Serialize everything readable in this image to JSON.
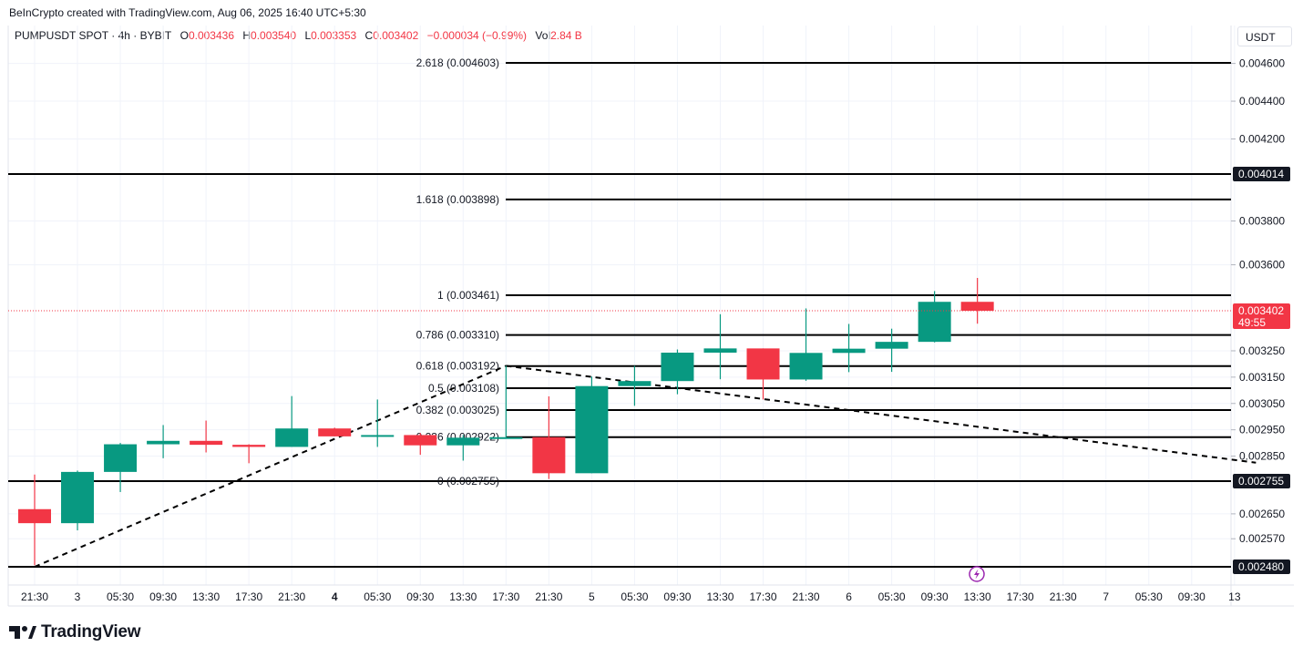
{
  "credit": "BeInCrypto created with TradingView.com, Aug 06, 2025 16:40 UTC+5:30",
  "legend": {
    "symbol": "PUMPUSDT SPOT · 4h · BYBIT",
    "open_label": "O",
    "open": "0.003436",
    "high_label": "H",
    "high": "0.003540",
    "low_label": "L",
    "low": "0.003353",
    "close_label": "C",
    "close": "0.003402",
    "change": "−0.000034 (−0.99%)",
    "vol_label": "Vol",
    "vol": "2.84 B"
  },
  "currency": "USDT",
  "brand": "TradingView",
  "colors": {
    "up": "#089981",
    "down": "#f23645",
    "line": "#000000",
    "grid": "#f0f3fa"
  },
  "chart_data": {
    "type": "candlestick",
    "y_axis_ticks": [
      "0.004600",
      "0.004400",
      "0.004200",
      "0.003800",
      "0.003600",
      "0.003250",
      "0.003150",
      "0.003050",
      "0.002950",
      "0.002850",
      "0.002650",
      "0.002570"
    ],
    "x_axis_ticks": [
      "21:30",
      "3",
      "05:30",
      "09:30",
      "13:30",
      "17:30",
      "21:30",
      "4",
      "05:30",
      "09:30",
      "13:30",
      "17:30",
      "21:30",
      "5",
      "05:30",
      "09:30",
      "13:30",
      "17:30",
      "21:30",
      "6",
      "05:30",
      "09:30",
      "13:30",
      "17:30",
      "21:30",
      "7",
      "05:30",
      "09:30",
      "13"
    ],
    "bold_x_ticks": [
      "4"
    ],
    "candles": [
      {
        "o": 0.002665,
        "h": 0.00278,
        "l": 0.002485,
        "c": 0.00262
      },
      {
        "o": 0.00262,
        "h": 0.002795,
        "l": 0.002597,
        "c": 0.00279
      },
      {
        "o": 0.00279,
        "h": 0.0029,
        "l": 0.00272,
        "c": 0.002895
      },
      {
        "o": 0.002895,
        "h": 0.002968,
        "l": 0.002842,
        "c": 0.002908
      },
      {
        "o": 0.002908,
        "h": 0.002985,
        "l": 0.002864,
        "c": 0.002893
      },
      {
        "o": 0.002893,
        "h": 0.002895,
        "l": 0.002823,
        "c": 0.002885
      },
      {
        "o": 0.002885,
        "h": 0.003078,
        "l": 0.002885,
        "c": 0.002955
      },
      {
        "o": 0.002955,
        "h": 0.002958,
        "l": 0.002925,
        "c": 0.002925
      },
      {
        "o": 0.002925,
        "h": 0.003065,
        "l": 0.002885,
        "c": 0.00293
      },
      {
        "o": 0.00293,
        "h": 0.002938,
        "l": 0.002855,
        "c": 0.002891
      },
      {
        "o": 0.002891,
        "h": 0.00293,
        "l": 0.002833,
        "c": 0.00292
      },
      {
        "o": 0.00292,
        "h": 0.003193,
        "l": 0.00292,
        "c": 0.002922
      },
      {
        "o": 0.002922,
        "h": 0.003077,
        "l": 0.002763,
        "c": 0.002785
      },
      {
        "o": 0.002785,
        "h": 0.003152,
        "l": 0.002785,
        "c": 0.003116
      },
      {
        "o": 0.003116,
        "h": 0.003193,
        "l": 0.003041,
        "c": 0.003135
      },
      {
        "o": 0.003135,
        "h": 0.003255,
        "l": 0.003085,
        "c": 0.003243
      },
      {
        "o": 0.003243,
        "h": 0.003389,
        "l": 0.003142,
        "c": 0.003259
      },
      {
        "o": 0.003259,
        "h": 0.003259,
        "l": 0.003065,
        "c": 0.003141
      },
      {
        "o": 0.003141,
        "h": 0.003411,
        "l": 0.003136,
        "c": 0.003242
      },
      {
        "o": 0.003242,
        "h": 0.003352,
        "l": 0.003169,
        "c": 0.003258
      },
      {
        "o": 0.003258,
        "h": 0.003334,
        "l": 0.00317,
        "c": 0.003284
      },
      {
        "o": 0.003284,
        "h": 0.00348,
        "l": 0.003282,
        "c": 0.003436
      },
      {
        "o": 0.003436,
        "h": 0.00354,
        "l": 0.003353,
        "c": 0.003402
      }
    ],
    "fib_levels": [
      {
        "ratio": "0",
        "value": 0.002755,
        "label": "0 (0.002755)"
      },
      {
        "ratio": "0.236",
        "value": 0.002922,
        "label": "0.236 (0.002922)"
      },
      {
        "ratio": "0.382",
        "value": 0.003025,
        "label": "0.382 (0.003025)"
      },
      {
        "ratio": "0.5",
        "value": 0.003108,
        "label": "0.5 (0.003108)"
      },
      {
        "ratio": "0.618",
        "value": 0.003192,
        "label": "0.618 (0.003192)"
      },
      {
        "ratio": "0.786",
        "value": 0.00331,
        "label": "0.786 (0.003310)"
      },
      {
        "ratio": "1",
        "value": 0.003461,
        "label": "1 (0.003461)"
      },
      {
        "ratio": "1.618",
        "value": 0.003898,
        "label": "1.618 (0.003898)"
      },
      {
        "ratio": "2.618",
        "value": 0.004603,
        "label": "2.618 (0.004603)"
      }
    ],
    "horizontal_lines": [
      {
        "value": 0.004014,
        "label": "0.004014"
      },
      {
        "value": 0.002755,
        "label": "0.002755"
      },
      {
        "value": 0.00248,
        "label": "0.002480"
      }
    ],
    "trend_lines": [
      {
        "from": {
          "candle": 0,
          "price": 0.00248
        },
        "to": {
          "candle": 11,
          "price": 0.003193
        }
      },
      {
        "from": {
          "candle": 11,
          "price": 0.003193
        },
        "to": {
          "candle": 28.5,
          "price": 0.002825
        }
      }
    ],
    "current_price": {
      "value": 0.003402,
      "label": "0.003402",
      "countdown": "49:55"
    }
  }
}
